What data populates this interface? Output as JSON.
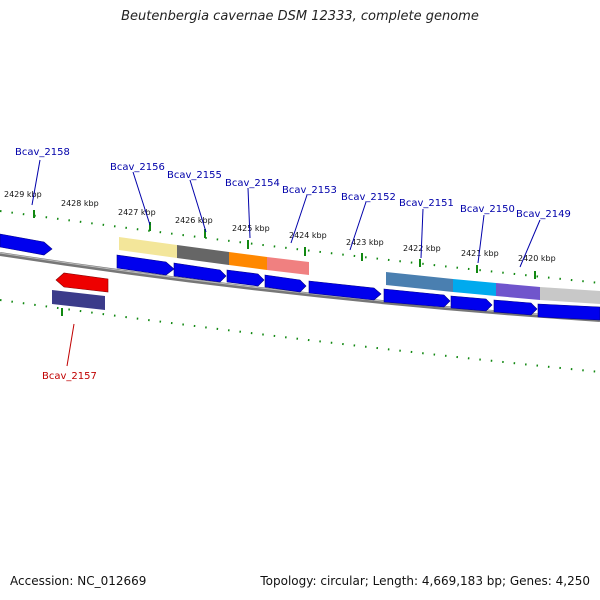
{
  "title": "Beutenbergia cavernae DSM 12333, complete genome",
  "footer": {
    "accession": "Accession: NC_012669",
    "stats": "Topology: circular; Length: 4,669,183 bp; Genes: 4,250"
  },
  "kbp_ticks": [
    {
      "label": "2429 kbp"
    },
    {
      "label": "2428 kbp"
    },
    {
      "label": "2427 kbp"
    },
    {
      "label": "2426 kbp"
    },
    {
      "label": "2425 kbp"
    },
    {
      "label": "2424 kbp"
    },
    {
      "label": "2423 kbp"
    },
    {
      "label": "2422 kbp"
    },
    {
      "label": "2421 kbp"
    },
    {
      "label": "2420 kbp"
    }
  ],
  "gene_labels": [
    {
      "name": "Bcav_2158",
      "strand": "forward"
    },
    {
      "name": "Bcav_2156",
      "strand": "forward"
    },
    {
      "name": "Bcav_2155",
      "strand": "forward"
    },
    {
      "name": "Bcav_2154",
      "strand": "forward"
    },
    {
      "name": "Bcav_2153",
      "strand": "forward"
    },
    {
      "name": "Bcav_2152",
      "strand": "forward"
    },
    {
      "name": "Bcav_2151",
      "strand": "forward"
    },
    {
      "name": "Bcav_2150",
      "strand": "forward"
    },
    {
      "name": "Bcav_2149",
      "strand": "forward"
    },
    {
      "name": "Bcav_2157",
      "strand": "reverse"
    }
  ],
  "colors": {
    "forward_gene": "#0000ee",
    "reverse_gene": "#ee0000",
    "backbone": "#888888",
    "tick": "#118811",
    "forward_label": "#0000aa",
    "reverse_label": "#c00000"
  }
}
